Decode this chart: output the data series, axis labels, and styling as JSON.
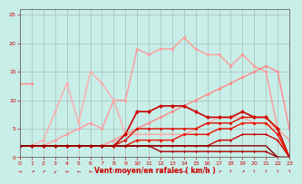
{
  "xlabel": "Vent moyen/en rafales ( km/h )",
  "xlim": [
    0,
    23
  ],
  "ylim": [
    0,
    26
  ],
  "yticks": [
    0,
    5,
    10,
    15,
    20,
    25
  ],
  "xticks": [
    0,
    1,
    2,
    3,
    4,
    5,
    6,
    7,
    8,
    9,
    10,
    11,
    12,
    13,
    14,
    15,
    16,
    17,
    18,
    19,
    20,
    21,
    22,
    23
  ],
  "bg_color": "#c8eee8",
  "grid_color": "#888888",
  "series": [
    {
      "comment": "flat line at 13 for x=0..1 only",
      "x": [
        0,
        1
      ],
      "y": [
        13,
        13
      ],
      "color": "#ff8888",
      "lw": 1.0,
      "marker": "D",
      "ms": 2.0
    },
    {
      "comment": "big pink spiky line going high",
      "x": [
        0,
        1,
        2,
        3,
        4,
        5,
        6,
        7,
        8,
        9,
        10,
        11,
        12,
        13,
        14,
        15,
        16,
        17,
        18,
        19,
        20,
        21,
        22,
        23
      ],
      "y": [
        2,
        2,
        2,
        3,
        4,
        5,
        6,
        5,
        10,
        10,
        19,
        18,
        19,
        19,
        21,
        19,
        18,
        18,
        16,
        18,
        16,
        15,
        5,
        3
      ],
      "color": "#ff9999",
      "lw": 1.0,
      "marker": "D",
      "ms": 2.0
    },
    {
      "comment": "pink line with early spike",
      "x": [
        0,
        1,
        2,
        3,
        4,
        5,
        6,
        7,
        8,
        9,
        10,
        11,
        12,
        13,
        14,
        15,
        16,
        17,
        18,
        19,
        20,
        21,
        22,
        23
      ],
      "y": [
        2,
        2,
        3,
        8,
        13,
        6,
        15,
        13,
        10,
        4,
        4,
        4,
        4,
        4,
        4,
        5,
        6,
        7,
        7,
        7,
        6,
        6,
        5,
        3
      ],
      "color": "#ffaaaa",
      "lw": 1.0,
      "marker": "D",
      "ms": 2.0
    },
    {
      "comment": "diagonal line rising slowly - top line",
      "x": [
        0,
        1,
        2,
        3,
        4,
        5,
        6,
        7,
        8,
        9,
        10,
        11,
        12,
        13,
        14,
        15,
        16,
        17,
        18,
        19,
        20,
        21,
        22,
        23
      ],
      "y": [
        2,
        2,
        2,
        2,
        2,
        2,
        2,
        2,
        3,
        4,
        5,
        6,
        7,
        8,
        9,
        10,
        11,
        12,
        13,
        14,
        15,
        16,
        15,
        5
      ],
      "color": "#ff8888",
      "lw": 1.0,
      "marker": "D",
      "ms": 2.0
    },
    {
      "comment": "dark red line with markers - mid high",
      "x": [
        0,
        1,
        2,
        3,
        4,
        5,
        6,
        7,
        8,
        9,
        10,
        11,
        12,
        13,
        14,
        15,
        16,
        17,
        18,
        19,
        20,
        21,
        22,
        23
      ],
      "y": [
        2,
        2,
        2,
        2,
        2,
        2,
        2,
        2,
        2,
        4,
        8,
        8,
        9,
        9,
        9,
        8,
        7,
        7,
        7,
        8,
        7,
        7,
        5,
        0
      ],
      "color": "#cc0000",
      "lw": 1.2,
      "marker": "D",
      "ms": 2.5
    },
    {
      "comment": "red line mid",
      "x": [
        0,
        1,
        2,
        3,
        4,
        5,
        6,
        7,
        8,
        9,
        10,
        11,
        12,
        13,
        14,
        15,
        16,
        17,
        18,
        19,
        20,
        21,
        22,
        23
      ],
      "y": [
        2,
        2,
        2,
        2,
        2,
        2,
        2,
        2,
        2,
        3,
        5,
        5,
        5,
        5,
        5,
        5,
        6,
        6,
        6,
        7,
        7,
        7,
        5,
        0
      ],
      "color": "#dd1100",
      "lw": 1.0,
      "marker": "D",
      "ms": 2.0
    },
    {
      "comment": "red line lower",
      "x": [
        0,
        1,
        2,
        3,
        4,
        5,
        6,
        7,
        8,
        9,
        10,
        11,
        12,
        13,
        14,
        15,
        16,
        17,
        18,
        19,
        20,
        21,
        22,
        23
      ],
      "y": [
        2,
        2,
        2,
        2,
        2,
        2,
        2,
        2,
        2,
        2,
        3,
        3,
        3,
        3,
        4,
        4,
        4,
        5,
        5,
        6,
        6,
        6,
        4,
        0
      ],
      "color": "#ee1100",
      "lw": 1.0,
      "marker": "D",
      "ms": 2.0
    },
    {
      "comment": "red line lowest with markers",
      "x": [
        0,
        1,
        2,
        3,
        4,
        5,
        6,
        7,
        8,
        9,
        10,
        11,
        12,
        13,
        14,
        15,
        16,
        17,
        18,
        19,
        20,
        21,
        22,
        23
      ],
      "y": [
        2,
        2,
        2,
        2,
        2,
        2,
        2,
        2,
        2,
        2,
        2,
        2,
        2,
        2,
        2,
        2,
        2,
        3,
        3,
        4,
        4,
        4,
        3,
        0
      ],
      "color": "#cc0000",
      "lw": 1.0,
      "marker": "D",
      "ms": 1.5
    },
    {
      "comment": "near flat dark red",
      "x": [
        0,
        1,
        2,
        3,
        4,
        5,
        6,
        7,
        8,
        9,
        10,
        11,
        12,
        13,
        14,
        15,
        16,
        17,
        18,
        19,
        20,
        21,
        22,
        23
      ],
      "y": [
        2,
        2,
        2,
        2,
        2,
        2,
        2,
        2,
        2,
        2,
        2,
        2,
        1,
        1,
        1,
        1,
        1,
        1,
        1,
        1,
        1,
        1,
        0,
        0
      ],
      "color": "#aa0000",
      "lw": 1.0,
      "marker": "D",
      "ms": 1.5
    },
    {
      "comment": "flattest bottom line",
      "x": [
        0,
        1,
        2,
        3,
        4,
        5,
        6,
        7,
        8,
        9,
        10,
        11,
        12,
        13,
        14,
        15,
        16,
        17,
        18,
        19,
        20,
        21,
        22,
        23
      ],
      "y": [
        2,
        2,
        2,
        2,
        2,
        2,
        2,
        2,
        2,
        2,
        2,
        2,
        2,
        2,
        2,
        2,
        2,
        2,
        2,
        2,
        2,
        2,
        0,
        0
      ],
      "color": "#880000",
      "lw": 1.0,
      "marker": null,
      "ms": 0
    }
  ],
  "wind_arrows": [
    "→",
    "↗",
    "↗",
    "↙",
    "←",
    "←",
    "←",
    "↙",
    "↑",
    "↗",
    "↑",
    "↗",
    "↑",
    "↗",
    "→",
    "→",
    "↗",
    "↗",
    "↑",
    "↗",
    "↑",
    "↑",
    "↑",
    "↑"
  ]
}
